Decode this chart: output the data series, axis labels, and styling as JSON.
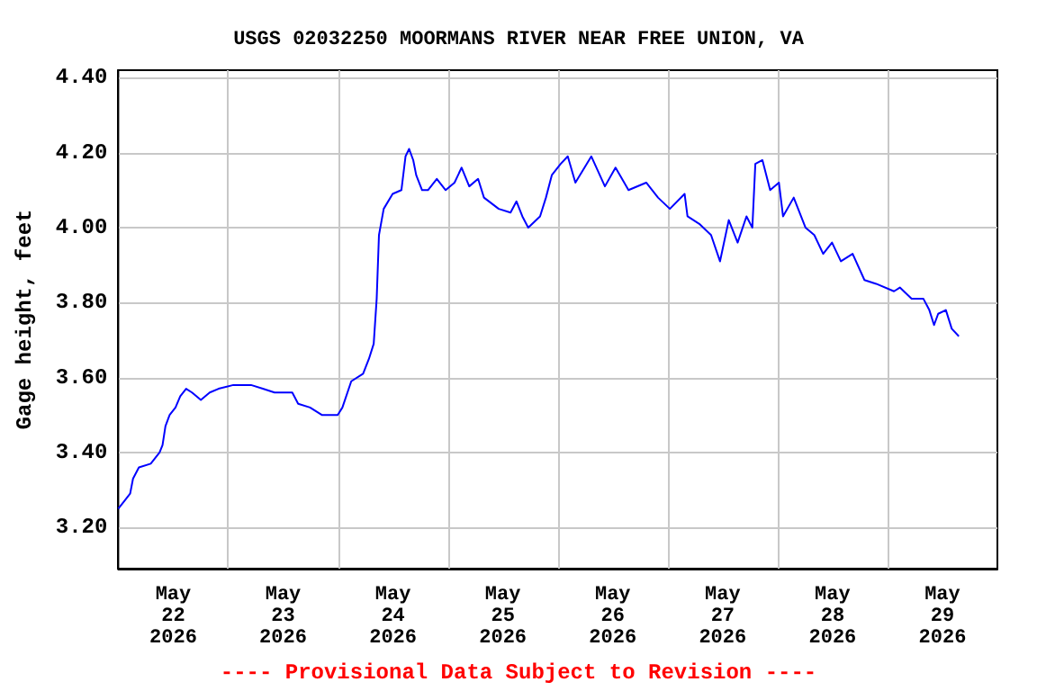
{
  "chart_data": {
    "type": "line",
    "title": "USGS 02032250 MOORMANS RIVER NEAR FREE UNION, VA",
    "ylabel": "Gage height, feet",
    "annotations": [
      "---- Provisional Data Subject to Revision ----"
    ],
    "x": [
      "2026-05-22T00:00",
      "2026-05-22T01:17",
      "2026-05-22T02:35",
      "2026-05-22T03:13",
      "2026-05-22T04:30",
      "2026-05-22T07:05",
      "2026-05-22T09:01",
      "2026-05-22T09:40",
      "2026-05-22T10:18",
      "2026-05-22T11:13",
      "2026-05-22T12:30",
      "2026-05-22T13:32",
      "2026-05-22T14:49",
      "2026-05-22T16:06",
      "2026-05-22T18:02",
      "2026-05-22T19:58",
      "2026-05-22T21:54",
      "2026-05-23T01:07",
      "2026-05-23T04:59",
      "2026-05-23T07:34",
      "2026-05-23T10:08",
      "2026-05-23T14:00",
      "2026-05-23T15:17",
      "2026-05-23T17:52",
      "2026-05-23T20:27",
      "2026-05-23T23:55",
      "2026-05-24T00:57",
      "2026-05-24T02:53",
      "2026-05-24T05:28",
      "2026-05-24T06:45",
      "2026-05-24T07:47",
      "2026-05-24T08:26",
      "2026-05-24T08:56",
      "2026-05-24T09:58",
      "2026-05-24T11:55",
      "2026-05-24T13:50",
      "2026-05-24T14:44",
      "2026-05-24T15:31",
      "2026-05-24T16:25",
      "2026-05-24T17:04",
      "2026-05-24T18:21",
      "2026-05-24T19:38",
      "2026-05-24T21:34",
      "2026-05-24T23:30",
      "2026-05-25T01:26",
      "2026-05-25T02:59",
      "2026-05-25T04:39",
      "2026-05-25T06:35",
      "2026-05-25T07:52",
      "2026-05-25T11:05",
      "2026-05-25T13:40",
      "2026-05-25T14:58",
      "2026-05-25T16:15",
      "2026-05-25T17:32",
      "2026-05-25T20:07",
      "2026-05-25T21:24",
      "2026-05-25T22:41",
      "2026-05-26T00:37",
      "2026-05-26T02:10",
      "2026-05-26T03:50",
      "2026-05-26T07:19",
      "2026-05-26T10:17",
      "2026-05-26T12:36",
      "2026-05-26T15:26",
      "2026-05-26T19:18",
      "2026-05-26T21:53",
      "2026-05-27T00:28",
      "2026-05-27T03:41",
      "2026-05-27T04:19",
      "2026-05-27T06:54",
      "2026-05-27T09:28",
      "2026-05-27T11:25",
      "2026-05-27T13:20",
      "2026-05-27T15:16",
      "2026-05-27T17:12",
      "2026-05-27T18:29",
      "2026-05-27T19:08",
      "2026-05-27T20:41",
      "2026-05-27T22:22",
      "2026-05-28T00:17",
      "2026-05-28T01:11",
      "2026-05-28T03:31",
      "2026-05-28T06:05",
      "2026-05-28T08:01",
      "2026-05-28T09:57",
      "2026-05-28T11:53",
      "2026-05-28T13:49",
      "2026-05-28T16:23",
      "2026-05-28T18:58",
      "2026-05-28T21:32",
      "2026-05-29T01:25",
      "2026-05-29T02:42",
      "2026-05-29T05:16",
      "2026-05-29T07:51",
      "2026-05-29T09:08",
      "2026-05-29T10:10",
      "2026-05-29T11:04",
      "2026-05-29T12:45",
      "2026-05-29T14:02",
      "2026-05-29T15:35"
    ],
    "series": [
      {
        "color": "#0000ff",
        "values": [
          3.25,
          3.27,
          3.29,
          3.33,
          3.36,
          3.37,
          3.4,
          3.42,
          3.47,
          3.5,
          3.52,
          3.55,
          3.57,
          3.56,
          3.54,
          3.56,
          3.57,
          3.58,
          3.58,
          3.57,
          3.56,
          3.56,
          3.53,
          3.52,
          3.5,
          3.5,
          3.52,
          3.59,
          3.61,
          3.65,
          3.69,
          3.81,
          3.98,
          4.05,
          4.09,
          4.1,
          4.19,
          4.21,
          4.18,
          4.14,
          4.1,
          4.1,
          4.13,
          4.1,
          4.12,
          4.16,
          4.11,
          4.13,
          4.08,
          4.05,
          4.04,
          4.07,
          4.03,
          4.0,
          4.03,
          4.08,
          4.14,
          4.17,
          4.19,
          4.12,
          4.19,
          4.11,
          4.16,
          4.1,
          4.12,
          4.08,
          4.05,
          4.09,
          4.03,
          4.01,
          3.98,
          3.91,
          4.02,
          3.96,
          4.03,
          4.0,
          4.17,
          4.18,
          4.1,
          4.12,
          4.03,
          4.08,
          4.0,
          3.98,
          3.93,
          3.96,
          3.91,
          3.93,
          3.86,
          3.85,
          3.83,
          3.84,
          3.81,
          3.81,
          3.78,
          3.74,
          3.77,
          3.78,
          3.73,
          3.71
        ]
      }
    ],
    "xlim": [
      "2026-05-22T00:00",
      "2026-05-30T00:00"
    ],
    "xticks": [
      {
        "value": "2026-05-22T12:00",
        "label": "May\n22\n2026"
      },
      {
        "value": "2026-05-23T00:00",
        "label": null
      },
      {
        "value": "2026-05-23T12:00",
        "label": "May\n23\n2026"
      },
      {
        "value": "2026-05-24T00:00",
        "label": null
      },
      {
        "value": "2026-05-24T12:00",
        "label": "May\n24\n2026"
      },
      {
        "value": "2026-05-25T00:00",
        "label": null
      },
      {
        "value": "2026-05-25T12:00",
        "label": "May\n25\n2026"
      },
      {
        "value": "2026-05-26T00:00",
        "label": null
      },
      {
        "value": "2026-05-26T12:00",
        "label": "May\n26\n2026"
      },
      {
        "value": "2026-05-27T00:00",
        "label": null
      },
      {
        "value": "2026-05-27T12:00",
        "label": "May\n27\n2026"
      },
      {
        "value": "2026-05-28T00:00",
        "label": null
      },
      {
        "value": "2026-05-28T12:00",
        "label": "May\n28\n2026"
      },
      {
        "value": "2026-05-29T00:00",
        "label": null
      },
      {
        "value": "2026-05-29T12:00",
        "label": "May\n29\n2026"
      }
    ],
    "ylim": [
      3.09,
      4.42
    ],
    "yticks": [
      {
        "value": 3.2,
        "label": "3.20"
      },
      {
        "value": 3.4,
        "label": "3.40"
      },
      {
        "value": 3.6,
        "label": "3.60"
      },
      {
        "value": 3.8,
        "label": "3.80"
      },
      {
        "value": 4.0,
        "label": "4.00"
      },
      {
        "value": 4.2,
        "label": "4.20"
      },
      {
        "value": 4.4,
        "label": "4.40"
      }
    ],
    "grid": true,
    "marker": "none",
    "line_style": "solid"
  }
}
